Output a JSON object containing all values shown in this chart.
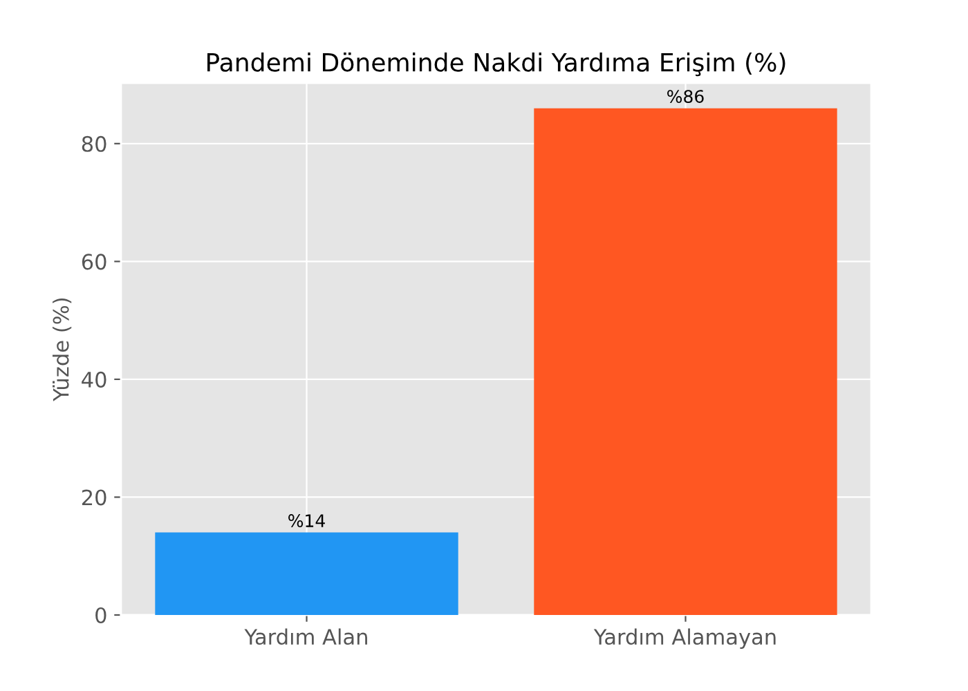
{
  "chart_data": {
    "type": "bar",
    "title": "Pandemi Döneminde Nakdi Yardıma Erişim (%)",
    "ylabel": "Yüzde (%)",
    "categories": [
      "Yardım Alan",
      "Yardım Alamayan"
    ],
    "values": [
      14,
      86
    ],
    "colors": [
      "#2196f3",
      "#ff5722"
    ],
    "value_labels": [
      "%14",
      "%86"
    ],
    "ylim": [
      0,
      90.3
    ],
    "yticks": [
      0,
      20,
      40,
      60,
      80
    ],
    "grid": true
  }
}
